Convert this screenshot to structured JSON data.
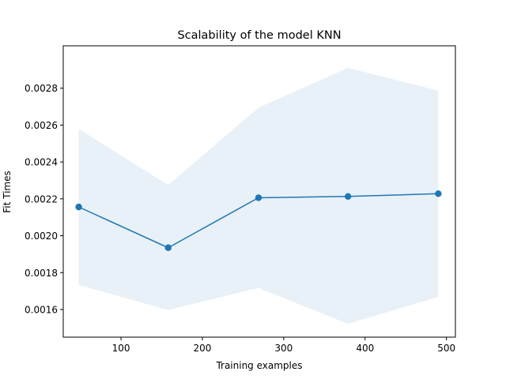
{
  "chart_data": {
    "type": "line",
    "title": "Scalability of the model KNN",
    "xlabel": "Training examples",
    "ylabel": "Fit Times",
    "xlim": [
      29,
      511
    ],
    "ylim": [
      0.00145,
      0.00303
    ],
    "xticks": [
      100,
      200,
      300,
      400,
      500
    ],
    "xtick_labels": [
      "100",
      "200",
      "300",
      "400",
      "500"
    ],
    "yticks": [
      0.0016,
      0.0018,
      0.002,
      0.0022,
      0.0024,
      0.0026,
      0.0028
    ],
    "ytick_labels": [
      "0.0016",
      "0.0018",
      "0.0020",
      "0.0022",
      "0.0024",
      "0.0026",
      "0.0028"
    ],
    "grid": false,
    "series": [
      {
        "x": [
          48,
          158,
          269,
          379,
          490
        ],
        "y": [
          0.002156,
          0.001935,
          0.002206,
          0.002213,
          0.002228
        ],
        "band_upper": [
          0.00258,
          0.002275,
          0.002695,
          0.00291,
          0.002787
        ],
        "band_lower": [
          0.001733,
          0.001597,
          0.001717,
          0.001522,
          0.001668
        ],
        "color": "#1f77b4",
        "band_color": "#1f77b4",
        "band_opacity": 0.1,
        "marker": "circle"
      }
    ]
  }
}
